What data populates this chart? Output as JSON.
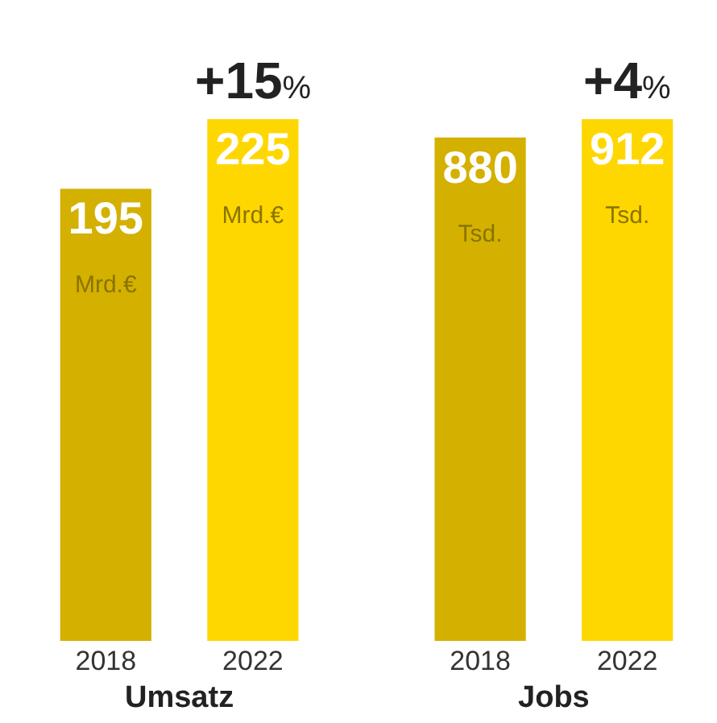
{
  "chart_data": [
    {
      "type": "bar",
      "xlabel": "Umsatz",
      "categories": [
        "2018",
        "2022"
      ],
      "values": [
        195,
        225
      ],
      "colors": [
        "#d4b000",
        "#ffd700"
      ],
      "value_labels": [
        "195 Mrd.€",
        "225 Mrd.€"
      ],
      "annotations": [
        "+15%"
      ],
      "tick_labels": "x"
    },
    {
      "type": "bar",
      "xlabel": "Jobs",
      "categories": [
        "2018",
        "2022"
      ],
      "values": [
        880,
        912
      ],
      "colors": [
        "#d4b000",
        "#ffd700"
      ],
      "value_labels": [
        "880 Tsd.",
        "912 Tsd."
      ],
      "annotations": [
        "+4%"
      ],
      "tick_labels": "x"
    }
  ]
}
